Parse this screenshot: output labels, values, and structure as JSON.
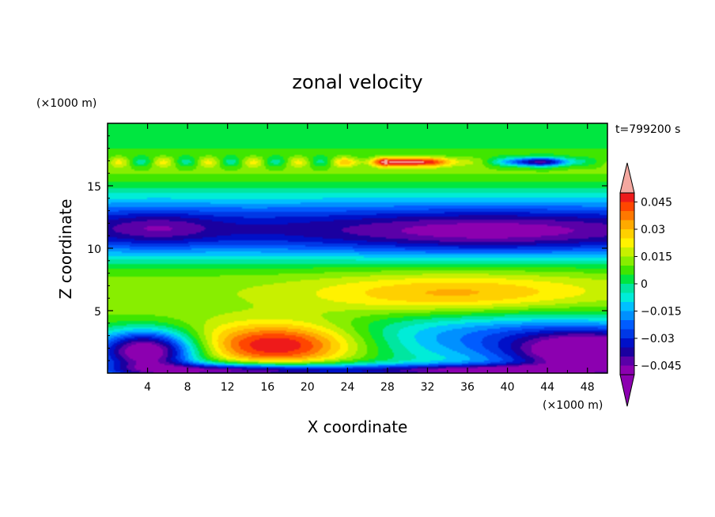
{
  "chart_data": {
    "type": "heatmap",
    "title": "zonal velocity",
    "xlabel": "X coordinate",
    "ylabel": "Z coordinate",
    "x_unit": "(×1000 m)",
    "z_unit": "(×1000 m)",
    "time_label": "t=799200 s",
    "xlim": [
      0,
      50
    ],
    "zlim": [
      0,
      20
    ],
    "x_ticks": [
      "4",
      "8",
      "12",
      "16",
      "20",
      "24",
      "28",
      "32",
      "36",
      "40",
      "44",
      "48"
    ],
    "z_ticks": [
      "5",
      "10",
      "15"
    ],
    "colorbar": {
      "ticks": [
        "0.045",
        "0.03",
        "0.015",
        "0",
        "−0.015",
        "−0.03",
        "−0.045"
      ],
      "levels": [
        -0.05,
        -0.045,
        -0.04,
        -0.035,
        -0.03,
        -0.025,
        -0.02,
        -0.015,
        -0.01,
        -0.005,
        0,
        0.005,
        0.01,
        0.015,
        0.02,
        0.025,
        0.03,
        0.035,
        0.04,
        0.045,
        0.05
      ],
      "colors": [
        "#8c00b0",
        "#5a00a8",
        "#1a00a0",
        "#0010c8",
        "#0038e6",
        "#005cff",
        "#0090ff",
        "#00c0ff",
        "#00ecd8",
        "#00e6a0",
        "#00e640",
        "#40e600",
        "#88ee00",
        "#c8f000",
        "#fff200",
        "#ffd000",
        "#ffaa00",
        "#ff7800",
        "#ff4600",
        "#ee1a1a"
      ],
      "under_color": "#8c00b0",
      "over_color": "#f4a8a0"
    },
    "features": [
      {
        "x": 4,
        "z": 1.8,
        "value": -0.05
      },
      {
        "x": 16,
        "z": 2.2,
        "value": 0.045
      },
      {
        "x": 34,
        "z": 6.2,
        "value": 0.04
      },
      {
        "x": 14,
        "z": 0.3,
        "value": -0.05
      },
      {
        "x": 46,
        "z": 1.6,
        "value": -0.05
      },
      {
        "x": 5,
        "z": 11.5,
        "value": -0.04
      },
      {
        "x": 30,
        "z": 16.8,
        "value": 0.05
      },
      {
        "x": 43,
        "z": 16.8,
        "value": -0.045
      }
    ]
  }
}
